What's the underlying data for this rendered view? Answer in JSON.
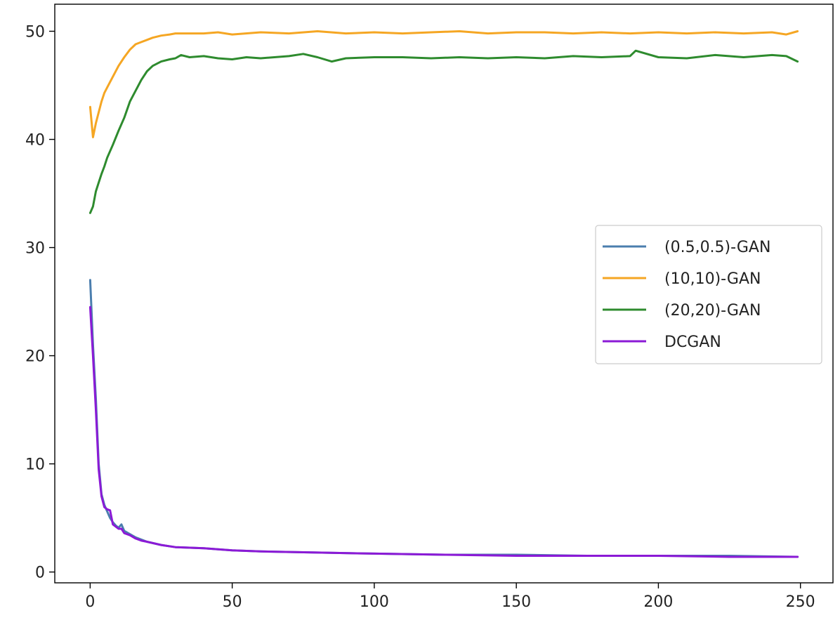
{
  "chart_data": {
    "type": "line",
    "title": "",
    "xlabel": "",
    "ylabel": "",
    "xlim": [
      -12.45,
      261.45
    ],
    "ylim": [
      -1.0,
      52.5
    ],
    "xticks": [
      0,
      50,
      100,
      150,
      200,
      250
    ],
    "yticks": [
      0,
      10,
      20,
      30,
      40,
      50
    ],
    "grid": false,
    "legend": "center-right",
    "series": [
      {
        "name": "(0.5,0.5)-GAN",
        "color": "#4b7eae",
        "x": [
          0,
          1,
          2,
          3,
          4,
          5,
          6,
          7,
          8,
          9,
          10,
          11,
          12,
          14,
          16,
          18,
          20,
          25,
          30,
          40,
          50,
          60,
          80,
          100,
          125,
          150,
          175,
          200,
          225,
          249
        ],
        "y": [
          27.0,
          21.0,
          16.0,
          10.0,
          7.2,
          6.2,
          5.6,
          5.0,
          4.6,
          4.3,
          4.1,
          4.4,
          3.8,
          3.5,
          3.2,
          3.0,
          2.8,
          2.5,
          2.3,
          2.2,
          2.0,
          1.9,
          1.8,
          1.7,
          1.6,
          1.6,
          1.5,
          1.5,
          1.5,
          1.4
        ]
      },
      {
        "name": "(10,10)-GAN",
        "color": "#f5a623",
        "x": [
          0,
          1,
          2,
          3,
          4,
          5,
          6,
          8,
          10,
          12,
          14,
          16,
          18,
          20,
          22,
          25,
          28,
          30,
          35,
          40,
          45,
          50,
          60,
          70,
          80,
          90,
          100,
          110,
          120,
          130,
          140,
          150,
          160,
          170,
          180,
          190,
          200,
          210,
          220,
          230,
          240,
          245,
          249
        ],
        "y": [
          43.0,
          40.2,
          41.5,
          42.5,
          43.5,
          44.3,
          44.8,
          45.8,
          46.8,
          47.6,
          48.3,
          48.8,
          49.0,
          49.2,
          49.4,
          49.6,
          49.7,
          49.8,
          49.8,
          49.8,
          49.9,
          49.7,
          49.9,
          49.8,
          50.0,
          49.8,
          49.9,
          49.8,
          49.9,
          50.0,
          49.8,
          49.9,
          49.9,
          49.8,
          49.9,
          49.8,
          49.9,
          49.8,
          49.9,
          49.8,
          49.9,
          49.7,
          50.0
        ]
      },
      {
        "name": "(20,20)-GAN",
        "color": "#2e8b2e",
        "x": [
          0,
          1,
          2,
          3,
          4,
          5,
          6,
          8,
          10,
          12,
          14,
          16,
          18,
          20,
          22,
          25,
          28,
          30,
          32,
          35,
          40,
          45,
          50,
          55,
          60,
          70,
          75,
          80,
          85,
          90,
          100,
          110,
          120,
          130,
          140,
          150,
          160,
          170,
          180,
          190,
          192,
          200,
          210,
          220,
          230,
          240,
          245,
          249
        ],
        "y": [
          33.2,
          33.8,
          35.2,
          36.0,
          36.8,
          37.5,
          38.3,
          39.5,
          40.8,
          42.0,
          43.5,
          44.5,
          45.5,
          46.3,
          46.8,
          47.2,
          47.4,
          47.5,
          47.8,
          47.6,
          47.7,
          47.5,
          47.4,
          47.6,
          47.5,
          47.7,
          47.9,
          47.6,
          47.2,
          47.5,
          47.6,
          47.6,
          47.5,
          47.6,
          47.5,
          47.6,
          47.5,
          47.7,
          47.6,
          47.7,
          48.2,
          47.6,
          47.5,
          47.8,
          47.6,
          47.8,
          47.7,
          47.2
        ]
      },
      {
        "name": "DCGAN",
        "color": "#8b1ad6",
        "x": [
          0,
          1,
          2,
          3,
          4,
          5,
          6,
          7,
          8,
          9,
          10,
          11,
          12,
          14,
          16,
          18,
          20,
          25,
          30,
          40,
          50,
          60,
          80,
          100,
          125,
          150,
          175,
          200,
          225,
          249
        ],
        "y": [
          24.5,
          20.0,
          15.0,
          9.5,
          7.0,
          6.0,
          5.8,
          5.7,
          4.4,
          4.2,
          4.0,
          4.0,
          3.6,
          3.4,
          3.1,
          2.9,
          2.8,
          2.5,
          2.3,
          2.2,
          2.0,
          1.9,
          1.8,
          1.7,
          1.6,
          1.5,
          1.5,
          1.5,
          1.4,
          1.4
        ]
      }
    ]
  }
}
